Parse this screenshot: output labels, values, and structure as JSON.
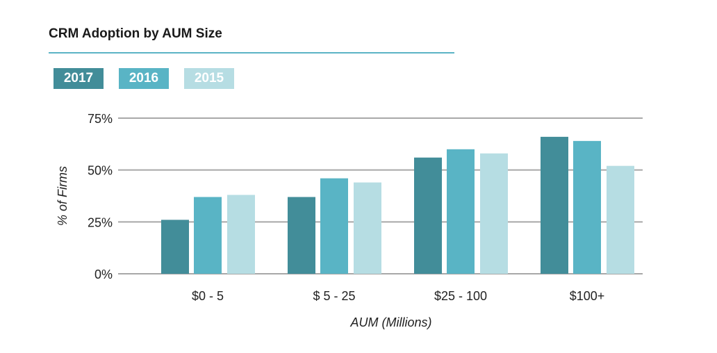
{
  "chart_data": {
    "type": "bar",
    "title": "CRM Adoption by AUM Size",
    "xlabel": "AUM (Millions)",
    "ylabel": "% of Firms",
    "categories": [
      "$0 - 5",
      "$ 5 - 25",
      "$25 - 100",
      "$100+"
    ],
    "series": [
      {
        "name": "2017",
        "color": "#428d99",
        "values": [
          26,
          37,
          56,
          66
        ]
      },
      {
        "name": "2016",
        "color": "#59b4c5",
        "values": [
          37,
          46,
          60,
          64
        ]
      },
      {
        "name": "2015",
        "color": "#b6dde3",
        "values": [
          38,
          44,
          58,
          52
        ]
      }
    ],
    "ylim": [
      0,
      75
    ],
    "yticks": [
      {
        "v": 0,
        "label": "0%"
      },
      {
        "v": 25,
        "label": "25%"
      },
      {
        "v": 50,
        "label": "50%"
      },
      {
        "v": 75,
        "label": "75%"
      }
    ],
    "grid": true,
    "legend": "top-left"
  }
}
